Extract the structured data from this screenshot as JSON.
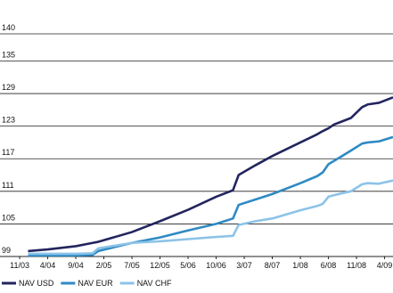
{
  "chart_data": {
    "type": "line",
    "x": [
      1.5,
      5,
      10,
      13,
      14,
      20,
      25,
      30,
      35,
      38,
      39,
      42,
      45,
      50,
      53,
      54,
      55,
      56,
      59,
      61,
      62,
      64,
      66.5
    ],
    "xlim": [
      -3.5,
      66.5
    ],
    "xticks": [
      {
        "value": 0,
        "label": "11/03"
      },
      {
        "value": 5,
        "label": "4/04"
      },
      {
        "value": 10,
        "label": "9/04"
      },
      {
        "value": 15,
        "label": "2/05"
      },
      {
        "value": 20,
        "label": "7/05"
      },
      {
        "value": 25,
        "label": "12/05"
      },
      {
        "value": 30,
        "label": "5/06"
      },
      {
        "value": 35,
        "label": "10/06"
      },
      {
        "value": 40,
        "label": "3/07"
      },
      {
        "value": 45,
        "label": "8/07"
      },
      {
        "value": 50,
        "label": "1/08"
      },
      {
        "value": 55,
        "label": "6/08"
      },
      {
        "value": 60,
        "label": "11/08"
      },
      {
        "value": 65,
        "label": "4/09"
      }
    ],
    "ylim": [
      99,
      140
    ],
    "yticks": [
      99,
      105,
      111,
      117,
      123,
      129,
      135,
      140
    ],
    "grid": true,
    "legend": "bottom-left",
    "series": [
      {
        "name": "NAV USD",
        "color": "#23255f",
        "values": [
          100,
          100.3,
          100.9,
          101.5,
          101.7,
          103.5,
          105.5,
          107.6,
          110,
          111.2,
          114,
          115.8,
          117.5,
          120,
          121.5,
          122.1,
          122.6,
          123.3,
          124.5,
          126.5,
          127,
          127.3,
          128.3
        ]
      },
      {
        "name": "NAV EUR",
        "color": "#2f8ac4",
        "values": [
          99.2,
          99.2,
          99.2,
          99.3,
          100,
          101.5,
          102.5,
          103.8,
          105,
          106,
          108.5,
          109.5,
          110.5,
          112.5,
          113.8,
          114.5,
          116,
          116.6,
          118.5,
          119.8,
          120,
          120.2,
          121
        ]
      },
      {
        "name": "NAV CHF",
        "color": "#8cc3e8",
        "values": [
          99.5,
          99.5,
          99.5,
          99.6,
          100.5,
          101.5,
          101.8,
          102.2,
          102.6,
          102.8,
          104.8,
          105.5,
          106,
          107.5,
          108.3,
          108.7,
          110,
          110.3,
          111,
          112.3,
          112.5,
          112.4,
          113
        ]
      }
    ]
  }
}
